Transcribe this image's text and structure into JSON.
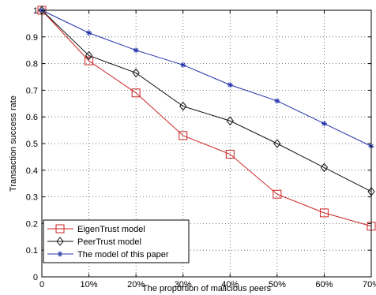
{
  "chart_data": {
    "type": "line",
    "title": "",
    "xlabel": "The proportion of malicious peers",
    "ylabel": "Transaction success rate",
    "categories": [
      "0",
      "10%",
      "20%",
      "30%",
      "40%",
      "50%",
      "60%",
      "70%"
    ],
    "x": [
      0,
      10,
      20,
      30,
      40,
      50,
      60,
      70
    ],
    "xlim": [
      0,
      70
    ],
    "ylim": [
      0,
      1
    ],
    "yticks": [
      "0",
      "0.1",
      "0.2",
      "0.3",
      "0.4",
      "0.5",
      "0.6",
      "0.7",
      "0.8",
      "0.9",
      "1"
    ],
    "grid": true,
    "legend_position": "bottom-left",
    "series": [
      {
        "name": "EigenTrust model",
        "color": "#cc2222",
        "marker": "square",
        "values": [
          1.0,
          0.81,
          0.69,
          0.53,
          0.46,
          0.31,
          0.24,
          0.19
        ]
      },
      {
        "name": "PeerTrust model",
        "color": "#111111",
        "marker": "diamond",
        "values": [
          1.0,
          0.83,
          0.765,
          0.64,
          0.585,
          0.5,
          0.41,
          0.32
        ]
      },
      {
        "name": "The model of this paper",
        "color": "#2233aa",
        "marker": "star",
        "values": [
          1.0,
          0.915,
          0.85,
          0.795,
          0.72,
          0.66,
          0.575,
          0.49
        ]
      }
    ]
  }
}
